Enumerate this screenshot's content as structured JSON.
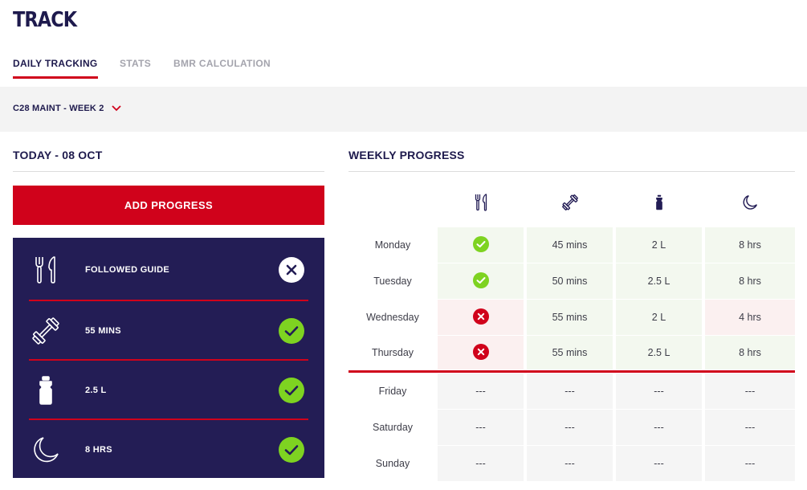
{
  "page": {
    "title": "TRACK"
  },
  "tabs": [
    {
      "label": "DAILY TRACKING",
      "active": true
    },
    {
      "label": "STATS",
      "active": false
    },
    {
      "label": "BMR CALCULATION",
      "active": false
    }
  ],
  "week_selector": {
    "label": "C28 MAINT - WEEK 2",
    "icon": "chevron-down-icon"
  },
  "today": {
    "title": "TODAY - 08 OCT",
    "add_button": "ADD PROGRESS",
    "items": [
      {
        "icon": "cutlery-icon",
        "label": "FOLLOWED GUIDE",
        "status": "not-done"
      },
      {
        "icon": "dumbbell-icon",
        "label": "55 MINS",
        "status": "done"
      },
      {
        "icon": "water-bottle-icon",
        "label": "2.5 L",
        "status": "done"
      },
      {
        "icon": "moon-icon",
        "label": "8 HRS",
        "status": "done"
      }
    ]
  },
  "weekly": {
    "title": "WEEKLY PROGRESS",
    "columns": [
      {
        "icon": "cutlery-icon"
      },
      {
        "icon": "dumbbell-icon"
      },
      {
        "icon": "water-bottle-icon"
      },
      {
        "icon": "moon-icon"
      }
    ],
    "rows": [
      {
        "day": "Monday",
        "cells": [
          {
            "type": "check",
            "state": "good"
          },
          {
            "text": "45 mins",
            "state": "good"
          },
          {
            "text": "2 L",
            "state": "good"
          },
          {
            "text": "8 hrs",
            "state": "good"
          }
        ]
      },
      {
        "day": "Tuesday",
        "cells": [
          {
            "type": "check",
            "state": "good"
          },
          {
            "text": "50 mins",
            "state": "good"
          },
          {
            "text": "2.5 L",
            "state": "good"
          },
          {
            "text": "8 hrs",
            "state": "good"
          }
        ]
      },
      {
        "day": "Wednesday",
        "cells": [
          {
            "type": "cross",
            "state": "bad"
          },
          {
            "text": "55 mins",
            "state": "good"
          },
          {
            "text": "2 L",
            "state": "good"
          },
          {
            "text": "4 hrs",
            "state": "bad"
          }
        ]
      },
      {
        "day": "Thursday",
        "cells": [
          {
            "type": "cross",
            "state": "bad"
          },
          {
            "text": "55 mins",
            "state": "good"
          },
          {
            "text": "2.5 L",
            "state": "good"
          },
          {
            "text": "8 hrs",
            "state": "good"
          }
        ]
      },
      {
        "day": "Friday",
        "cells": [
          {
            "text": "---",
            "state": "empty"
          },
          {
            "text": "---",
            "state": "empty"
          },
          {
            "text": "---",
            "state": "empty"
          },
          {
            "text": "---",
            "state": "empty"
          }
        ]
      },
      {
        "day": "Saturday",
        "cells": [
          {
            "text": "---",
            "state": "empty"
          },
          {
            "text": "---",
            "state": "empty"
          },
          {
            "text": "---",
            "state": "empty"
          },
          {
            "text": "---",
            "state": "empty"
          }
        ]
      },
      {
        "day": "Sunday",
        "cells": [
          {
            "text": "---",
            "state": "empty"
          },
          {
            "text": "---",
            "state": "empty"
          },
          {
            "text": "---",
            "state": "empty"
          },
          {
            "text": "---",
            "state": "empty"
          }
        ]
      }
    ]
  },
  "colors": {
    "navy": "#1e1a4d",
    "card": "#231d55",
    "accent_red": "#d0021b",
    "check_green": "#7ed321",
    "cross_red": "#d0021b",
    "good_bg": "#f3f8ef",
    "bad_bg": "#fbf0f0",
    "empty_bg": "#f5f5f5",
    "tab_inactive": "#a4a4ad"
  }
}
